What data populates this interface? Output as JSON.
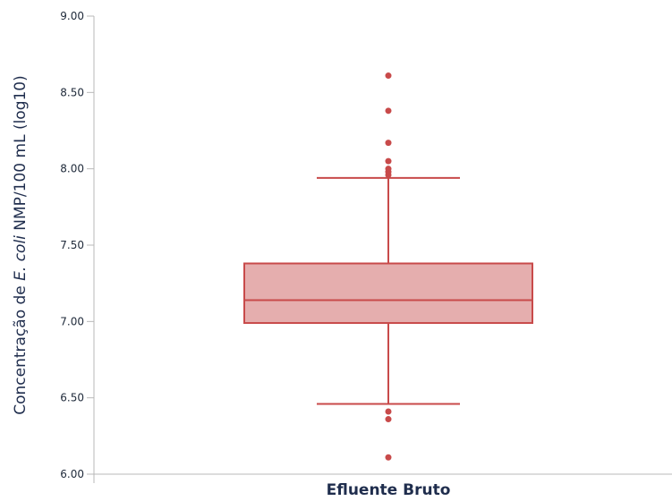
{
  "chart_data": {
    "type": "box",
    "title": "",
    "xlabel": "Efluente Bruto",
    "ylabel": {
      "pre": "Concentração de ",
      "italic": "E. coli",
      "post": " NMP/100 mL (log10)"
    },
    "ylim": [
      6.0,
      9.0
    ],
    "yticks": [
      "6.00",
      "6.50",
      "7.00",
      "7.50",
      "8.00",
      "8.50",
      "9.00"
    ],
    "categories": [
      "Efluente Bruto"
    ],
    "box": {
      "whisker_low": 6.46,
      "q1": 6.99,
      "median": 7.14,
      "q3": 7.38,
      "whisker_high": 7.94
    },
    "outliers": [
      6.11,
      6.36,
      6.41,
      7.96,
      7.98,
      8.0,
      8.05,
      8.17,
      8.38,
      8.61
    ],
    "colors": {
      "box_fill": "#e5aeae",
      "box_stroke": "#c84a4a",
      "outlier": "#c84a4a"
    },
    "grid": false
  }
}
